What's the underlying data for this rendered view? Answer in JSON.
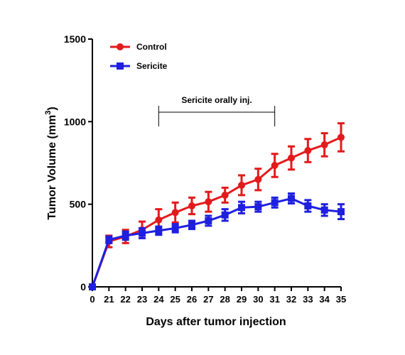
{
  "chart_data": {
    "type": "line",
    "xlabel": "Days after tumor injection",
    "ylabel_main": "Tumor Volume (mm",
    "ylabel_sup": "3",
    "ylabel_close": ")",
    "ylim": [
      0,
      1500
    ],
    "yticks": [
      0,
      500,
      1000,
      1500
    ],
    "categories": [
      "0",
      "21",
      "22",
      "23",
      "24",
      "25",
      "26",
      "27",
      "28",
      "29",
      "30",
      "31",
      "32",
      "33",
      "34",
      "35"
    ],
    "legend_position": "top-left",
    "grid": false,
    "series": [
      {
        "name": "Control",
        "color": "#e31a1c",
        "marker": "circle",
        "values": [
          0,
          275,
          305,
          345,
          405,
          450,
          490,
          515,
          555,
          615,
          650,
          735,
          780,
          825,
          860,
          905
        ],
        "errors": [
          0,
          35,
          40,
          50,
          65,
          60,
          50,
          60,
          45,
          60,
          65,
          70,
          70,
          70,
          70,
          85
        ]
      },
      {
        "name": "Sericite",
        "color": "#1f1fe0",
        "marker": "square",
        "values": [
          0,
          285,
          310,
          325,
          340,
          355,
          375,
          400,
          435,
          480,
          485,
          510,
          535,
          490,
          465,
          455
        ],
        "errors": [
          0,
          20,
          25,
          30,
          25,
          25,
          25,
          30,
          35,
          35,
          30,
          30,
          30,
          35,
          35,
          45
        ]
      }
    ],
    "annotation": {
      "text": "Sericite orally inj.",
      "from": "24",
      "to": "31"
    }
  }
}
